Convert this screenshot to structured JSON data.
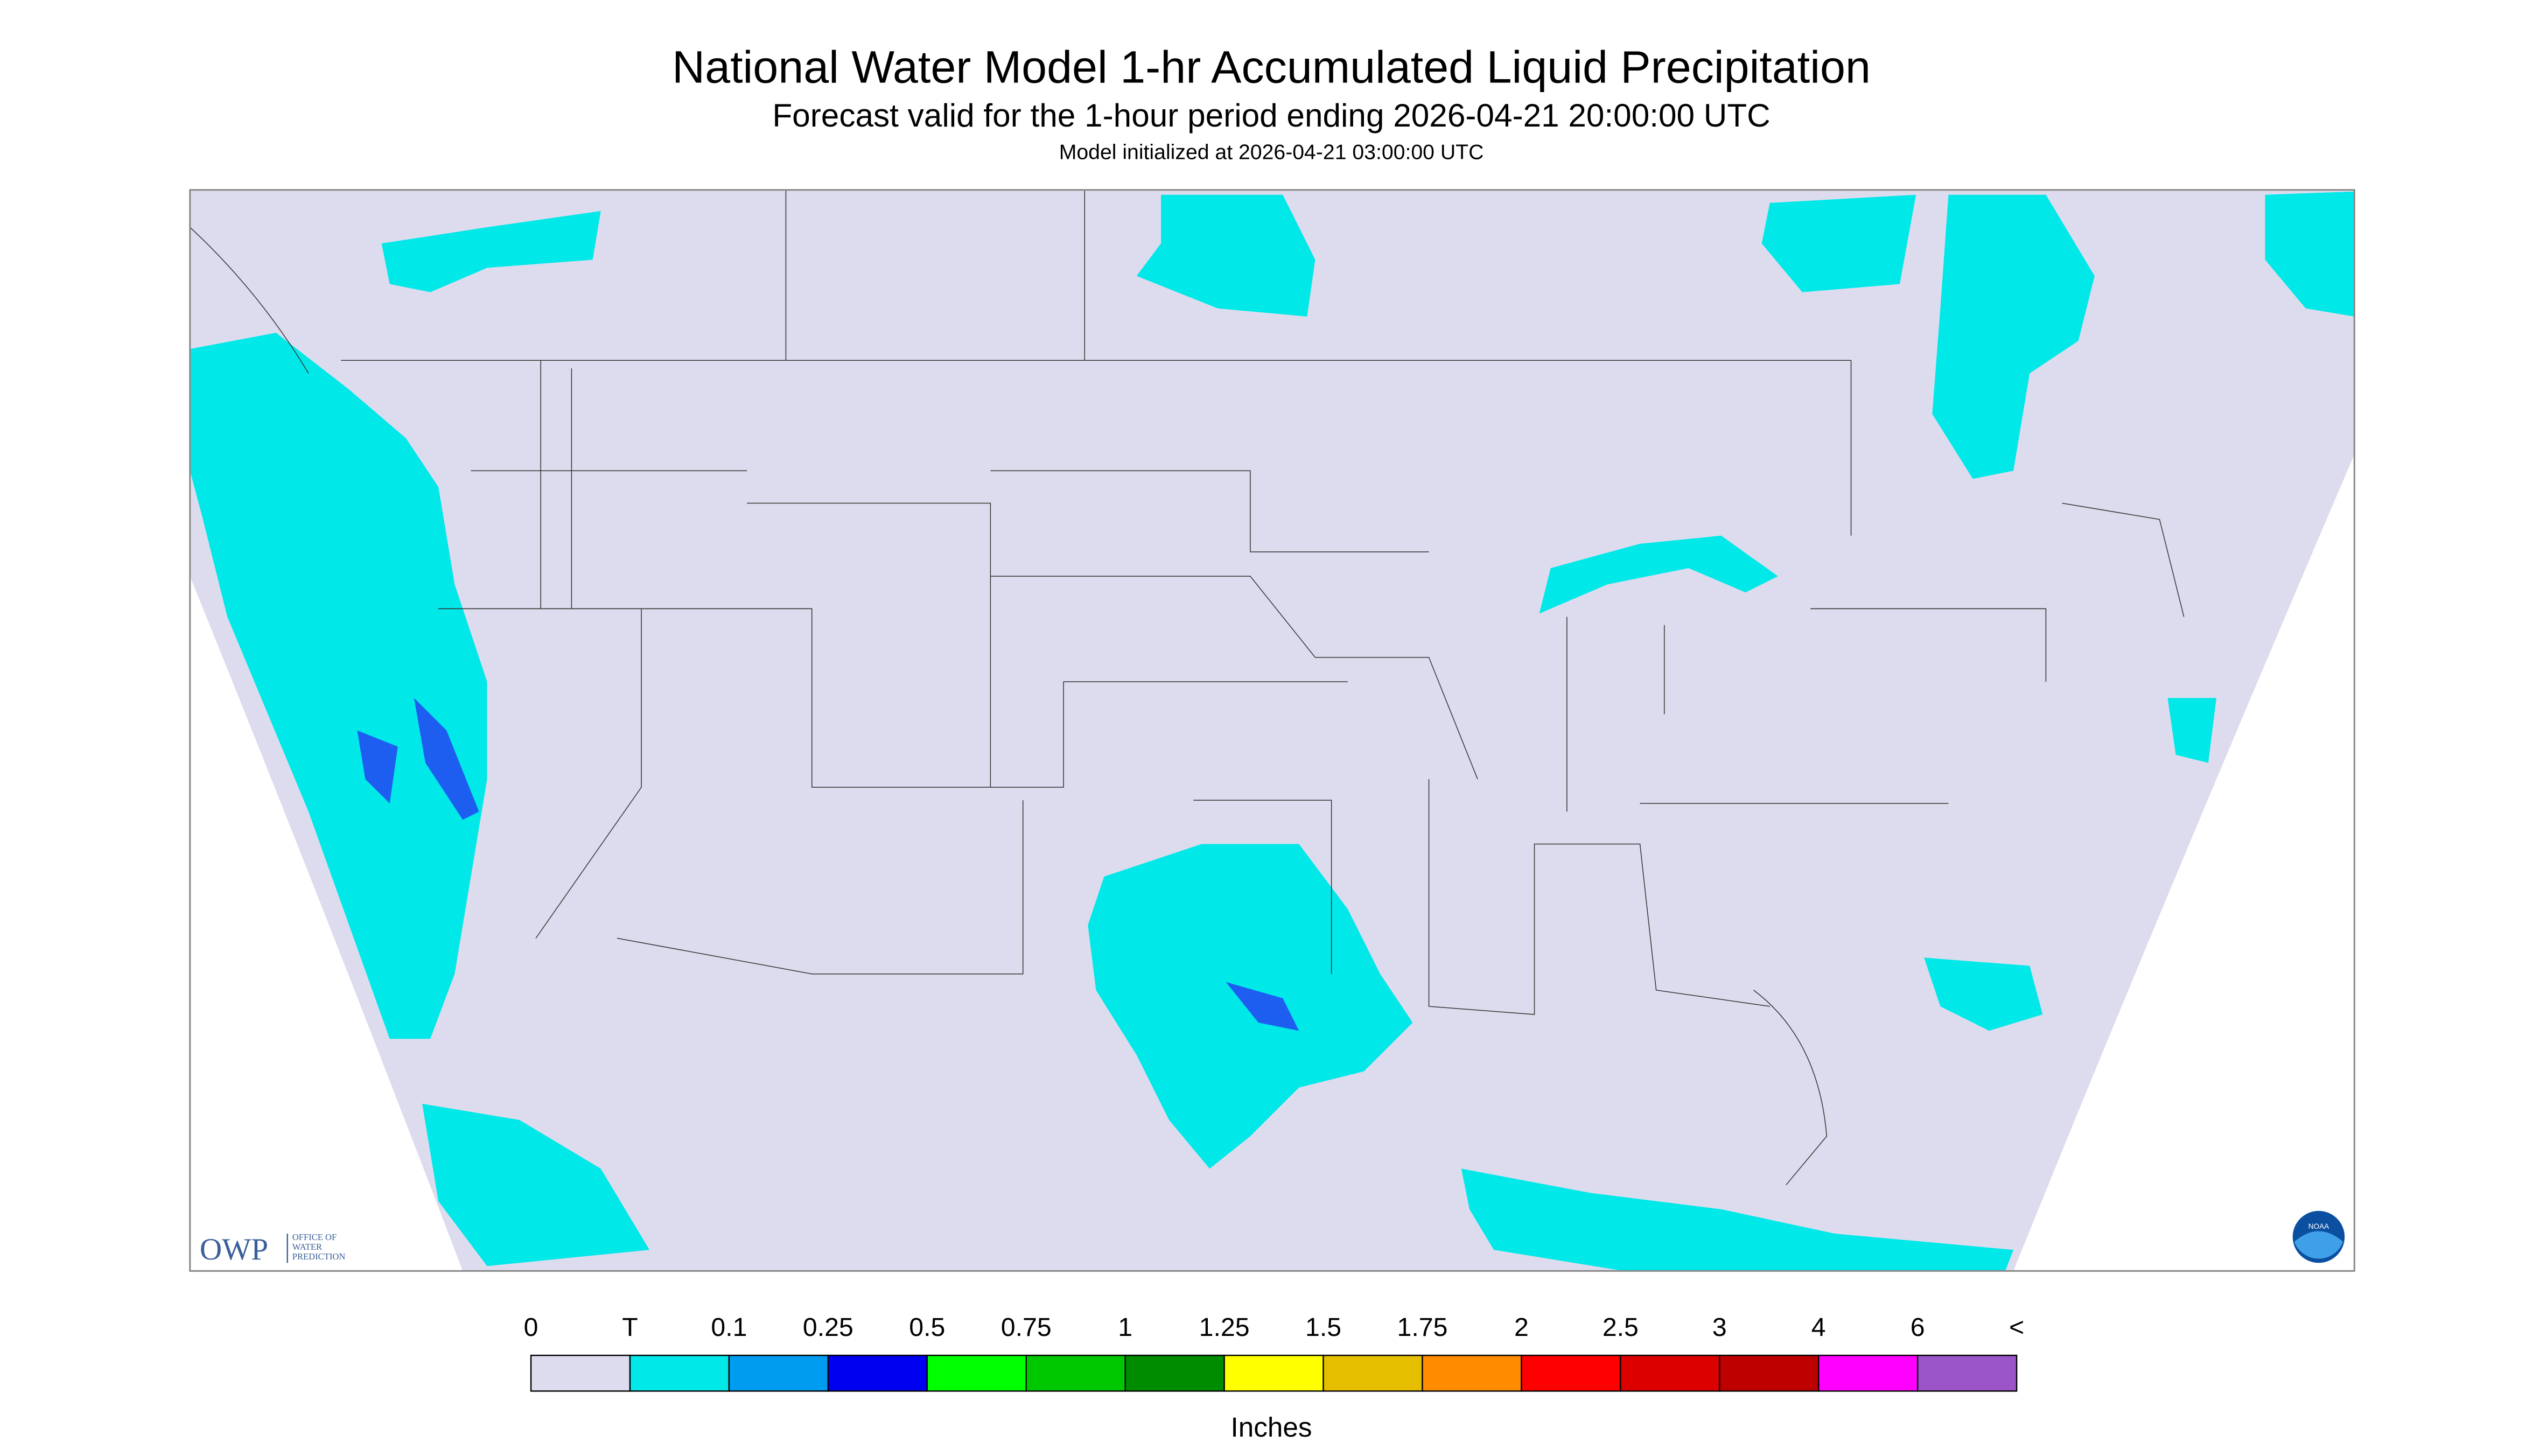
{
  "header": {
    "title": "National Water Model 1-hr Accumulated Liquid Precipitation",
    "subtitle": "Forecast valid for the 1-hour period ending 2026-04-21 20:00:00 UTC",
    "note": "Model initialized at 2026-04-21 03:00:00 UTC"
  },
  "logo": {
    "name": "OWP",
    "lines": [
      "OFFICE OF",
      "WATER",
      "PREDICTION"
    ],
    "badge": "NOAA"
  },
  "legend": {
    "labels": [
      "0",
      "T",
      "0.1",
      "0.25",
      "0.5",
      "0.75",
      "1",
      "1.25",
      "1.5",
      "1.75",
      "2",
      "2.5",
      "3",
      "4",
      "6",
      "<"
    ],
    "colors": [
      "#dcdcee",
      "#00e8e8",
      "#009cf0",
      "#0000f0",
      "#00ff00",
      "#00c800",
      "#008c00",
      "#ffff00",
      "#e6be00",
      "#ff8c00",
      "#ff0000",
      "#dc0000",
      "#be0000",
      "#ff00ff",
      "#9b55c8"
    ],
    "unit": "Inches"
  }
}
